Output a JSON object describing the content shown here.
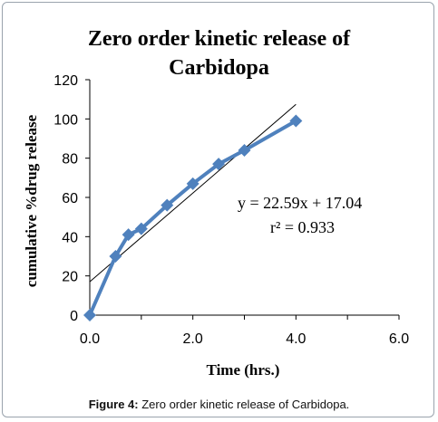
{
  "chart_data": {
    "type": "line",
    "title_lines": [
      "Zero order kinetic release of",
      "Carbidopa"
    ],
    "xlabel": "Time (hrs.)",
    "ylabel": "cumulative %drug release",
    "xlim": [
      0,
      6
    ],
    "ylim": [
      0,
      120
    ],
    "x_ticks": [
      "0.0",
      "2.0",
      "4.0",
      "6.0"
    ],
    "y_ticks": [
      "0",
      "20",
      "40",
      "60",
      "80",
      "100",
      "120"
    ],
    "x_tick_values": [
      0,
      2,
      4,
      6
    ],
    "y_tick_values": [
      0,
      20,
      40,
      60,
      80,
      100,
      120
    ],
    "grid": false,
    "series": [
      {
        "x": [
          0,
          0.5,
          0.75,
          1.0,
          1.5,
          2.0,
          2.5,
          3.0,
          4.0
        ],
        "values": [
          0,
          30,
          41,
          44,
          56,
          67,
          77,
          84,
          99
        ],
        "color": "#4f81bd",
        "marker": "diamond"
      }
    ],
    "trendline": {
      "slope": 22.59,
      "intercept": 17.04,
      "x_range": [
        0,
        4
      ],
      "color": "#000000"
    },
    "annotations": [
      "y = 22.59x + 17.04",
      "r² = 0.933"
    ]
  },
  "caption": {
    "label": "Figure 4:",
    "text": "Zero order kinetic release of Carbidopa."
  }
}
